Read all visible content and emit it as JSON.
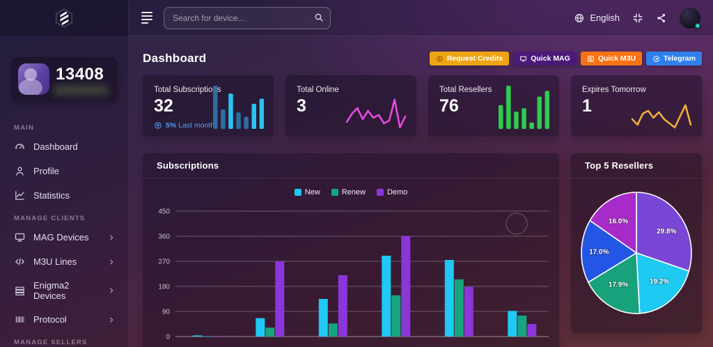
{
  "topbar": {
    "search_placeholder": "Search for device...",
    "language_label": "English"
  },
  "sidebar": {
    "user_id": "13408",
    "section_main": "MAIN",
    "section_clients": "MANAGE CLIENTS",
    "section_sellers": "MANAGE SELLERS",
    "items": [
      {
        "label": "Dashboard",
        "icon": "gauge-icon"
      },
      {
        "label": "Profile",
        "icon": "person-icon"
      },
      {
        "label": "Statistics",
        "icon": "line-chart-icon"
      },
      {
        "label": "MAG Devices",
        "icon": "monitor-icon"
      },
      {
        "label": "M3U Lines",
        "icon": "code-icon"
      },
      {
        "label": "Enigma2 Devices",
        "icon": "server-icon"
      },
      {
        "label": "Protocol",
        "icon": "barcode-icon"
      }
    ]
  },
  "header": {
    "title": "Dashboard",
    "buttons": [
      {
        "label": "Request Credits",
        "color": "#eda413",
        "icon": "coin-icon"
      },
      {
        "label": "Quick MAG",
        "color": "#4b1a78",
        "icon": "monitor-icon"
      },
      {
        "label": "Quick M3U",
        "color": "#f97316",
        "icon": "playlist-icon"
      },
      {
        "label": "Telegram",
        "color": "#2f80ed",
        "icon": "telegram-icon"
      }
    ]
  },
  "stats": [
    {
      "label": "Total Subscriptions",
      "value": "32",
      "delta_value": "5%",
      "delta_label": "Last month",
      "spark": {
        "type": "bars",
        "color": "#29c3f0",
        "alt_color": "#2e6d9e",
        "palette": [
          0,
          0,
          1,
          0,
          0,
          1,
          1
        ],
        "values": [
          100,
          45,
          82,
          38,
          28,
          58,
          70
        ]
      }
    },
    {
      "label": "Total Online",
      "value": "3",
      "spark": {
        "type": "line",
        "color": "#e84ae0",
        "values": [
          42,
          30,
          22,
          38,
          26,
          36,
          32,
          44,
          40,
          10,
          50,
          34
        ]
      }
    },
    {
      "label": "Total Resellers",
      "value": "76",
      "spark": {
        "type": "bars",
        "color": "#2ecc4f",
        "alt_color": "#27a844",
        "palette": [
          1,
          1,
          1,
          1,
          1,
          1,
          1
        ],
        "values": [
          55,
          100,
          40,
          48,
          15,
          75,
          88
        ]
      }
    },
    {
      "label": "Expires Tomorrow",
      "value": "1",
      "spark": {
        "type": "line",
        "color": "#eeb039",
        "values": [
          38,
          46,
          30,
          26,
          36,
          28,
          38,
          44,
          50,
          34,
          18,
          46
        ]
      }
    }
  ],
  "chart_data": [
    {
      "type": "bar",
      "title": "Subscriptions",
      "legend": [
        "New",
        "Renew",
        "Demo"
      ],
      "legend_position": "top-center",
      "colors": [
        "#1fc8f5",
        "#16a57e",
        "#8a36d9"
      ],
      "categories": [
        "",
        "",
        "",
        "",
        "",
        ""
      ],
      "series": [
        {
          "name": "New",
          "values": [
            4,
            66,
            135,
            290,
            275,
            92
          ]
        },
        {
          "name": "Renew",
          "values": [
            2,
            32,
            47,
            148,
            205,
            75
          ]
        },
        {
          "name": "Demo",
          "values": [
            2,
            270,
            220,
            360,
            178,
            45
          ]
        }
      ],
      "ylim": [
        0,
        450
      ],
      "yticks": [
        450,
        360,
        270,
        180,
        90,
        0
      ],
      "grid": true
    },
    {
      "type": "pie",
      "title": "Top 5 Resellers",
      "start_angle_deg": -90,
      "direction": "clockwise",
      "slices": [
        {
          "label": "29.8%",
          "value": 29.8,
          "color": "#7a46d5"
        },
        {
          "label": "19.2%",
          "value": 19.2,
          "color": "#1ec9f2"
        },
        {
          "label": "17.9%",
          "value": 17.9,
          "color": "#18a27b"
        },
        {
          "label": "17.0%",
          "value": 17.0,
          "color": "#2456e6"
        },
        {
          "label": "16.0%",
          "value": 16.0,
          "color": "#a62bc9"
        }
      ]
    }
  ]
}
